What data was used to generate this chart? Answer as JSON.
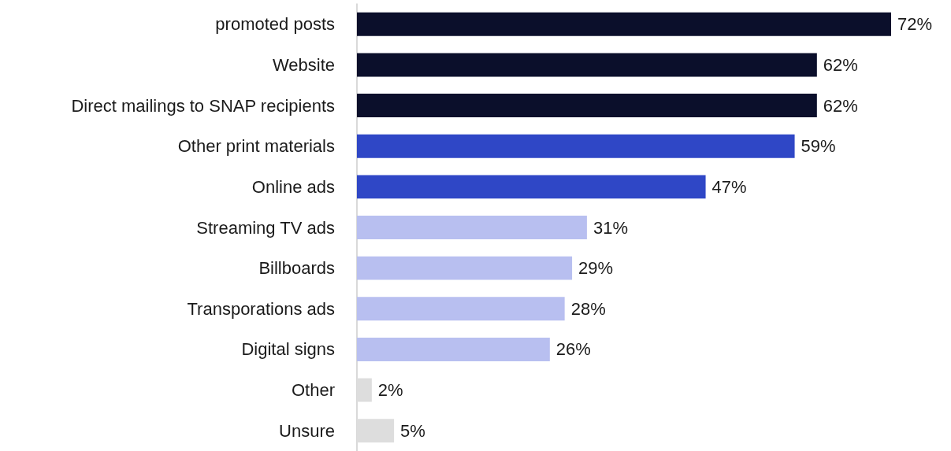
{
  "chart_data": {
    "type": "bar",
    "orientation": "horizontal",
    "categories": [
      "promoted posts",
      "Website",
      "Direct mailings to SNAP recipients",
      "Other print materials",
      "Online ads",
      "Streaming TV ads",
      "Billboards",
      "Transporations ads",
      "Digital signs",
      "Other",
      "Unsure"
    ],
    "values": [
      72,
      62,
      62,
      59,
      47,
      31,
      29,
      28,
      26,
      2,
      5
    ],
    "colors": [
      "#0b0f2b",
      "#0b0f2b",
      "#0b0f2b",
      "#2f47c6",
      "#2f47c6",
      "#b8bff0",
      "#b8bff0",
      "#b8bff0",
      "#b8bff0",
      "#dddddd",
      "#dddddd"
    ],
    "value_labels": [
      "72%",
      "62%",
      "62%",
      "59%",
      "47%",
      "31%",
      "29%",
      "28%",
      "26%",
      "2%",
      "5%"
    ],
    "grid": false
  }
}
